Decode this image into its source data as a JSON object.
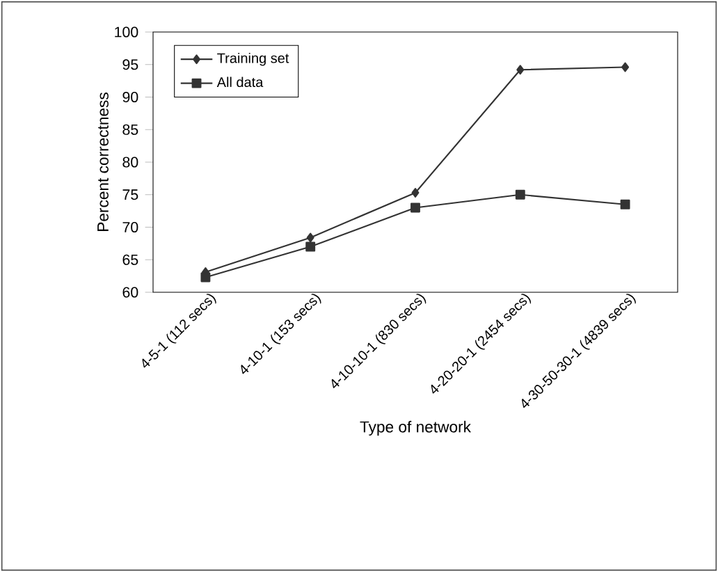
{
  "chart_data": {
    "type": "line",
    "xlabel": "Type of network",
    "ylabel": "Percent correctness",
    "categories": [
      "4-5-1 (112 secs)",
      "4-10-1 (153 secs)",
      "4-10-10-1 (830 secs)",
      "4-20-20-1 (2454 secs)",
      "4-30-50-30-1 (4839 secs)"
    ],
    "series": [
      {
        "name": "Training set",
        "color": "#333333",
        "marker": "diamond",
        "values": [
          63.1,
          68.4,
          75.3,
          94.2,
          94.6
        ]
      },
      {
        "name": "All data",
        "color": "#333333",
        "marker": "square",
        "values": [
          62.3,
          67.0,
          73.0,
          75.0,
          73.5
        ]
      }
    ],
    "ylim": [
      60,
      100
    ],
    "yticks": [
      60,
      65,
      70,
      75,
      80,
      85,
      90,
      95,
      100
    ],
    "grid": false,
    "legend": "top left",
    "line_style": "solid"
  }
}
